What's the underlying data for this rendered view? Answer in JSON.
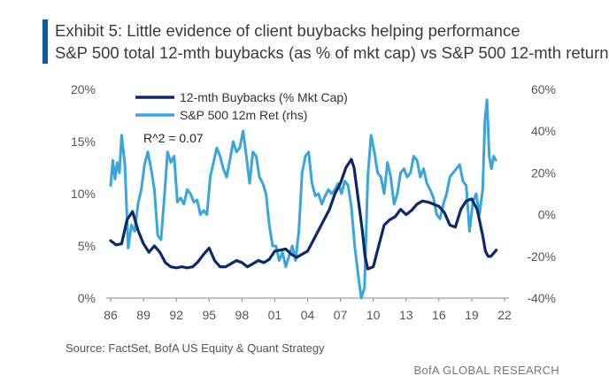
{
  "header": {
    "title": "Exhibit 5: Little evidence of client buybacks helping performance",
    "subtitle": "S&P 500 total 12-mth buybacks (as % of mkt cap) vs S&P 500 12-mth return"
  },
  "footer": {
    "source": "Source: FactSet, BofA US Equity & Quant Strategy",
    "brand": "BofA GLOBAL RESEARCH"
  },
  "colors": {
    "accent_bar": "#0a5ca8",
    "buybacks": "#0b2a6b",
    "sp500": "#38a6dc"
  },
  "chart_data": {
    "type": "line",
    "title": "",
    "xlabel": "",
    "ylabel": "",
    "xlim": [
      1986,
      2022
    ],
    "x_ticks": [
      86,
      89,
      92,
      95,
      98,
      1,
      4,
      7,
      10,
      13,
      16,
      19,
      22
    ],
    "x_tick_labels": [
      "86",
      "89",
      "92",
      "95",
      "98",
      "01",
      "04",
      "07",
      "10",
      "13",
      "16",
      "19",
      "22"
    ],
    "y_left": {
      "lim": [
        0,
        20
      ],
      "ticks": [
        0,
        5,
        10,
        15,
        20
      ],
      "tick_labels": [
        "0%",
        "5%",
        "10%",
        "15%",
        "20%"
      ]
    },
    "y_right": {
      "lim": [
        -40,
        60
      ],
      "ticks": [
        -40,
        -20,
        0,
        20,
        40,
        60
      ],
      "tick_labels": [
        "-40%",
        "-20%",
        "0%",
        "20%",
        "40%",
        "60%"
      ]
    },
    "grid": false,
    "legend": "top-left",
    "annotation": "R^2 = 0.07",
    "series": [
      {
        "name": "12-mth Buybacks (% Mkt Cap)",
        "axis": "left",
        "x": [
          1986.0,
          1986.5,
          1987.0,
          1987.5,
          1988.0,
          1988.5,
          1989.0,
          1989.5,
          1990.0,
          1990.5,
          1991.0,
          1991.5,
          1992.0,
          1992.5,
          1993.0,
          1993.5,
          1994.0,
          1994.5,
          1995.0,
          1995.5,
          1996.0,
          1996.5,
          1997.0,
          1997.5,
          1998.0,
          1998.5,
          1999.0,
          1999.5,
          2000.0,
          2000.5,
          2001.0,
          2001.5,
          2002.0,
          2002.5,
          2003.0,
          2003.5,
          2004.0,
          2004.5,
          2005.0,
          2005.5,
          2006.0,
          2006.5,
          2007.0,
          2007.5,
          2008.0,
          2008.25,
          2008.5,
          2008.75,
          2009.0,
          2009.25,
          2009.5,
          2010.0,
          2010.5,
          2011.0,
          2011.5,
          2012.0,
          2012.5,
          2013.0,
          2013.5,
          2014.0,
          2014.5,
          2015.0,
          2015.5,
          2016.0,
          2016.5,
          2017.0,
          2017.5,
          2018.0,
          2018.5,
          2019.0,
          2019.5,
          2020.0,
          2020.25,
          2020.5,
          2020.75,
          2021.0,
          2021.25
        ],
        "values": [
          5.5,
          5.1,
          5.2,
          7.5,
          8.3,
          6.5,
          5.2,
          4.4,
          5.0,
          4.4,
          3.4,
          3.0,
          2.9,
          3.0,
          2.9,
          3.0,
          3.5,
          4.2,
          4.8,
          3.6,
          3.0,
          3.0,
          3.3,
          3.6,
          3.4,
          3.0,
          3.3,
          3.6,
          3.4,
          3.7,
          4.5,
          4.6,
          4.7,
          4.2,
          3.9,
          4.2,
          4.5,
          5.5,
          6.5,
          7.5,
          8.5,
          10.0,
          11.0,
          12.5,
          13.3,
          12.5,
          10.5,
          8.5,
          6.5,
          4.0,
          2.8,
          3.0,
          5.0,
          7.0,
          7.5,
          7.8,
          8.5,
          8.0,
          8.4,
          9.0,
          9.3,
          9.2,
          9.0,
          8.8,
          8.2,
          7.0,
          6.8,
          8.5,
          9.3,
          9.5,
          8.5,
          6.0,
          4.5,
          4.0,
          4.0,
          4.3,
          4.6
        ]
      },
      {
        "name": "S&P 500 12m Ret (rhs)",
        "axis": "right",
        "x": [
          1986.0,
          1986.2,
          1986.4,
          1986.6,
          1986.8,
          1987.0,
          1987.3,
          1987.6,
          1987.9,
          1988.2,
          1988.5,
          1988.8,
          1989.1,
          1989.4,
          1989.7,
          1990.0,
          1990.3,
          1990.6,
          1990.9,
          1991.2,
          1991.5,
          1991.8,
          1992.1,
          1992.4,
          1992.7,
          1993.0,
          1993.3,
          1993.6,
          1993.9,
          1994.2,
          1994.5,
          1994.8,
          1995.1,
          1995.4,
          1995.7,
          1996.0,
          1996.3,
          1996.6,
          1996.9,
          1997.2,
          1997.5,
          1997.8,
          1998.1,
          1998.4,
          1998.7,
          1999.0,
          1999.3,
          1999.6,
          1999.9,
          2000.2,
          2000.5,
          2000.8,
          2001.1,
          2001.4,
          2001.7,
          2002.0,
          2002.3,
          2002.6,
          2002.9,
          2003.2,
          2003.5,
          2003.8,
          2004.1,
          2004.4,
          2004.7,
          2005.0,
          2005.3,
          2005.6,
          2005.9,
          2006.2,
          2006.5,
          2006.8,
          2007.1,
          2007.4,
          2007.7,
          2008.0,
          2008.3,
          2008.6,
          2008.9,
          2009.2,
          2009.5,
          2009.8,
          2010.1,
          2010.4,
          2010.7,
          2011.0,
          2011.3,
          2011.6,
          2011.9,
          2012.2,
          2012.5,
          2012.8,
          2013.1,
          2013.4,
          2013.7,
          2014.0,
          2014.3,
          2014.6,
          2014.9,
          2015.2,
          2015.5,
          2015.8,
          2016.1,
          2016.4,
          2016.7,
          2017.0,
          2017.3,
          2017.6,
          2017.9,
          2018.2,
          2018.5,
          2018.8,
          2019.1,
          2019.4,
          2019.7,
          2020.0,
          2020.2,
          2020.4,
          2020.6,
          2020.8,
          2021.0,
          2021.2
        ],
        "values": [
          14,
          26,
          17,
          25,
          20,
          38,
          24,
          -16,
          -5,
          -8,
          5,
          12,
          24,
          30,
          22,
          12,
          -10,
          -12,
          8,
          30,
          25,
          28,
          6,
          8,
          5,
          12,
          10,
          6,
          7,
          0,
          2,
          0,
          18,
          25,
          32,
          28,
          22,
          18,
          26,
          35,
          30,
          32,
          40,
          28,
          15,
          30,
          28,
          18,
          15,
          10,
          -5,
          -15,
          -15,
          -22,
          -18,
          -25,
          -20,
          -15,
          -22,
          -8,
          20,
          28,
          30,
          15,
          9,
          10,
          5,
          9,
          12,
          10,
          12,
          15,
          10,
          16,
          14,
          4,
          -15,
          -28,
          -40,
          -35,
          18,
          38,
          30,
          20,
          18,
          10,
          25,
          18,
          5,
          10,
          20,
          22,
          18,
          20,
          28,
          26,
          18,
          22,
          15,
          12,
          8,
          0,
          -2,
          5,
          10,
          18,
          20,
          22,
          24,
          16,
          14,
          -8,
          6,
          10,
          0,
          12,
          45,
          55,
          28,
          22,
          28,
          26
        ]
      }
    ]
  }
}
